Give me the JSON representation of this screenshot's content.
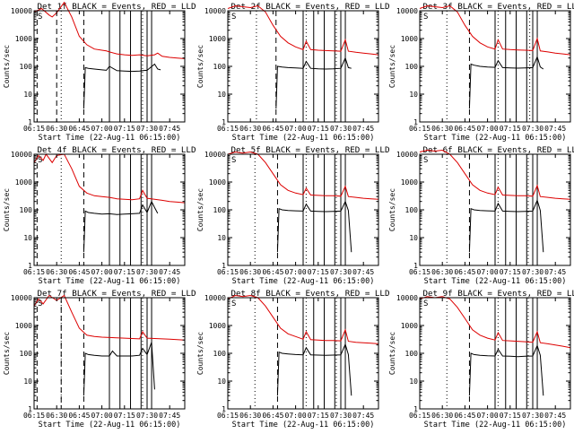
{
  "figure": {
    "xlabel": "Start Time (22-Aug-11 06:15:00)",
    "ylabel": "Counts/sec",
    "x_ticks": [
      "06:15",
      "06:30",
      "06:45",
      "07:00",
      "07:15",
      "07:30",
      "07:45"
    ],
    "y_ticks": [
      "1",
      "10",
      "100",
      "1000",
      "10000"
    ],
    "colors": {
      "events": "#000000",
      "lld": "#dd0000",
      "axes": "#000000",
      "background": "#ffffff"
    }
  },
  "chart_data": [
    {
      "type": "line",
      "title": "Det 1f BLACK = Events, RED = LLD",
      "corner_label": "S",
      "x_range": [
        "06:15",
        "07:55"
      ],
      "ylim": [
        1,
        10000
      ],
      "yscale": "log",
      "series": [
        {
          "name": "RED = LLD",
          "color": "#dd0000",
          "x_min": [
            0,
            5,
            10,
            12,
            15,
            20,
            25,
            30,
            35,
            40,
            45,
            48,
            50,
            55,
            60,
            65,
            70,
            75,
            80,
            82,
            85,
            90,
            95,
            100
          ],
          "values": [
            9000,
            12000,
            7000,
            6000,
            8500,
            20000,
            6000,
            1200,
            600,
            420,
            380,
            360,
            330,
            280,
            260,
            250,
            260,
            240,
            260,
            300,
            230,
            210,
            200,
            190
          ]
        },
        {
          "name": "BLACK = Events",
          "color": "#000000",
          "x_min": [
            33,
            34,
            36,
            40,
            45,
            48,
            50,
            55,
            60,
            65,
            70,
            72,
            75,
            80,
            82,
            84
          ],
          "values": [
            3,
            90,
            85,
            80,
            75,
            72,
            100,
            70,
            68,
            66,
            68,
            70,
            72,
            120,
            80,
            75
          ]
        }
      ],
      "vlines_dashed_min": [
        2,
        15,
        33
      ],
      "vlines_dotted_min": [
        18,
        50,
        72
      ],
      "vlines_solid_min": [
        50,
        57,
        64,
        71,
        75,
        78
      ]
    },
    {
      "type": "line",
      "title": "Det 2f BLACK = Events, RED = LLD",
      "corner_label": "S",
      "x_range": [
        "06:15",
        "07:55"
      ],
      "ylim": [
        1,
        10000
      ],
      "yscale": "log",
      "series": [
        {
          "name": "RED = LLD",
          "color": "#dd0000",
          "x_min": [
            0,
            5,
            10,
            15,
            20,
            25,
            30,
            35,
            40,
            45,
            50,
            52,
            55,
            60,
            65,
            70,
            75,
            78,
            80,
            85,
            90,
            95,
            100
          ],
          "values": [
            12000,
            15000,
            14000,
            13000,
            15000,
            9000,
            3000,
            1200,
            700,
            500,
            400,
            800,
            400,
            380,
            370,
            360,
            350,
            900,
            350,
            320,
            300,
            280,
            260
          ]
        },
        {
          "name": "BLACK = Events",
          "color": "#000000",
          "x_min": [
            32,
            33,
            36,
            40,
            45,
            50,
            52,
            55,
            60,
            65,
            70,
            75,
            78,
            80,
            82
          ],
          "values": [
            3,
            100,
            95,
            90,
            88,
            85,
            150,
            85,
            82,
            80,
            82,
            85,
            200,
            90,
            85
          ]
        }
      ],
      "vlines_dashed_min": [
        32
      ],
      "vlines_dotted_min": [
        19,
        52,
        72
      ],
      "vlines_solid_min": [
        50,
        57,
        64,
        71,
        75,
        78
      ]
    },
    {
      "type": "line",
      "title": "Det 3f BLACK = Events, RED = LLD",
      "corner_label": "S",
      "x_range": [
        "06:15",
        "07:55"
      ],
      "ylim": [
        1,
        10000
      ],
      "yscale": "log",
      "series": [
        {
          "name": "RED = LLD",
          "color": "#dd0000",
          "x_min": [
            0,
            5,
            10,
            15,
            20,
            25,
            30,
            35,
            40,
            45,
            50,
            52,
            55,
            60,
            65,
            70,
            75,
            78,
            80,
            85,
            90,
            95,
            100
          ],
          "values": [
            12000,
            15000,
            14000,
            13000,
            15000,
            9000,
            3000,
            1200,
            700,
            500,
            420,
            900,
            420,
            400,
            390,
            380,
            370,
            1000,
            360,
            330,
            300,
            280,
            260
          ]
        },
        {
          "name": "BLACK = Events",
          "color": "#000000",
          "x_min": [
            33,
            34,
            36,
            40,
            45,
            50,
            52,
            55,
            60,
            65,
            70,
            75,
            78,
            80,
            82
          ],
          "values": [
            3,
            120,
            110,
            100,
            95,
            92,
            160,
            90,
            88,
            86,
            88,
            90,
            220,
            95,
            80
          ]
        }
      ],
      "vlines_dashed_min": [
        33
      ],
      "vlines_dotted_min": [
        18,
        52,
        73
      ],
      "vlines_solid_min": [
        50,
        57,
        64,
        71,
        75,
        78
      ]
    },
    {
      "type": "line",
      "title": "Det 4f BLACK = Events, RED = LLD",
      "corner_label": "S",
      "x_range": [
        "06:15",
        "07:55"
      ],
      "ylim": [
        1,
        10000
      ],
      "yscale": "log",
      "series": [
        {
          "name": "RED = LLD",
          "color": "#dd0000",
          "x_min": [
            0,
            3,
            6,
            8,
            12,
            15,
            20,
            25,
            30,
            35,
            40,
            45,
            50,
            55,
            60,
            65,
            70,
            72,
            75,
            80,
            85,
            90,
            95,
            100
          ],
          "values": [
            5000,
            9000,
            6000,
            10000,
            5000,
            9000,
            10000,
            3000,
            700,
            400,
            320,
            300,
            280,
            250,
            240,
            230,
            250,
            500,
            260,
            240,
            220,
            200,
            190,
            180
          ]
        },
        {
          "name": "BLACK = Events",
          "color": "#000000",
          "x_min": [
            33,
            34,
            36,
            40,
            45,
            50,
            55,
            60,
            65,
            70,
            72,
            75,
            78,
            80,
            82
          ],
          "values": [
            3,
            90,
            80,
            75,
            70,
            72,
            68,
            70,
            72,
            75,
            150,
            80,
            200,
            120,
            75
          ]
        }
      ],
      "vlines_dashed_min": [
        2,
        33
      ],
      "vlines_dotted_min": [
        18,
        50,
        72
      ],
      "vlines_solid_min": [
        50,
        57,
        64,
        71,
        75,
        78
      ]
    },
    {
      "type": "line",
      "title": "Det 5f BLACK = Events, RED = LLD",
      "corner_label": "S",
      "x_range": [
        "06:15",
        "07:55"
      ],
      "ylim": [
        1,
        10000
      ],
      "yscale": "log",
      "series": [
        {
          "name": "RED = LLD",
          "color": "#dd0000",
          "x_min": [
            0,
            5,
            10,
            15,
            20,
            25,
            30,
            35,
            40,
            45,
            50,
            52,
            55,
            60,
            65,
            70,
            75,
            78,
            80,
            85,
            90,
            95,
            100
          ],
          "values": [
            10000,
            12000,
            11000,
            12000,
            10000,
            5000,
            2000,
            800,
            500,
            400,
            350,
            600,
            340,
            330,
            320,
            320,
            310,
            700,
            300,
            280,
            260,
            250,
            240
          ]
        },
        {
          "name": "BLACK = Events",
          "color": "#000000",
          "x_min": [
            33,
            34,
            36,
            40,
            45,
            50,
            52,
            55,
            60,
            65,
            70,
            75,
            78,
            80,
            82
          ],
          "values": [
            3,
            110,
            100,
            95,
            92,
            90,
            160,
            90,
            88,
            86,
            88,
            90,
            200,
            95,
            3
          ]
        }
      ],
      "vlines_dashed_min": [
        33
      ],
      "vlines_dotted_min": [
        18,
        52,
        72
      ],
      "vlines_solid_min": [
        50,
        57,
        64,
        71,
        75,
        78
      ]
    },
    {
      "type": "line",
      "title": "Det 6f BLACK = Events, RED = LLD",
      "corner_label": "S",
      "x_range": [
        "06:15",
        "07:55"
      ],
      "ylim": [
        1,
        10000
      ],
      "yscale": "log",
      "series": [
        {
          "name": "RED = LLD",
          "color": "#dd0000",
          "x_min": [
            0,
            5,
            10,
            15,
            20,
            25,
            30,
            35,
            40,
            45,
            50,
            52,
            55,
            60,
            65,
            70,
            75,
            78,
            80,
            85,
            90,
            95,
            100
          ],
          "values": [
            12000,
            14000,
            13000,
            14000,
            10000,
            5000,
            2000,
            800,
            500,
            400,
            350,
            650,
            340,
            330,
            320,
            320,
            310,
            750,
            300,
            280,
            260,
            250,
            240
          ]
        },
        {
          "name": "BLACK = Events",
          "color": "#000000",
          "x_min": [
            33,
            34,
            36,
            40,
            45,
            50,
            52,
            55,
            60,
            65,
            70,
            75,
            78,
            80,
            82
          ],
          "values": [
            3,
            110,
            100,
            95,
            92,
            90,
            170,
            90,
            88,
            86,
            88,
            90,
            220,
            95,
            3
          ]
        }
      ],
      "vlines_dashed_min": [
        33
      ],
      "vlines_dotted_min": [
        18,
        52,
        72
      ],
      "vlines_solid_min": [
        50,
        57,
        64,
        71,
        75,
        78
      ]
    },
    {
      "type": "line",
      "title": "Det 7f BLACK = Events, RED = LLD",
      "corner_label": "S",
      "x_range": [
        "06:15",
        "07:55"
      ],
      "ylim": [
        1,
        10000
      ],
      "yscale": "log",
      "series": [
        {
          "name": "RED = LLD",
          "color": "#dd0000",
          "x_min": [
            0,
            3,
            6,
            10,
            15,
            20,
            25,
            30,
            35,
            40,
            45,
            50,
            55,
            60,
            65,
            70,
            72,
            75,
            80,
            85,
            90,
            95,
            100
          ],
          "values": [
            5000,
            9000,
            6000,
            12000,
            8000,
            12000,
            3000,
            800,
            450,
            400,
            380,
            370,
            360,
            350,
            340,
            330,
            600,
            350,
            340,
            330,
            320,
            310,
            300
          ]
        },
        {
          "name": "BLACK = Events",
          "color": "#000000",
          "x_min": [
            33,
            34,
            36,
            40,
            45,
            50,
            52,
            55,
            60,
            65,
            70,
            72,
            75,
            78,
            80
          ],
          "values": [
            3,
            100,
            90,
            85,
            80,
            80,
            120,
            80,
            80,
            80,
            85,
            150,
            90,
            250,
            5
          ]
        }
      ],
      "vlines_dashed_min": [
        2,
        18,
        33
      ],
      "vlines_dotted_min": [
        18,
        50,
        72
      ],
      "vlines_solid_min": [
        50,
        57,
        64,
        71,
        75,
        78
      ]
    },
    {
      "type": "line",
      "title": "Det 8f BLACK = Events, RED = LLD",
      "corner_label": "S",
      "x_range": [
        "06:15",
        "07:55"
      ],
      "ylim": [
        1,
        10000
      ],
      "yscale": "log",
      "series": [
        {
          "name": "RED = LLD",
          "color": "#dd0000",
          "x_min": [
            0,
            5,
            10,
            15,
            20,
            25,
            30,
            35,
            40,
            45,
            50,
            52,
            55,
            60,
            65,
            70,
            75,
            78,
            80,
            85,
            90,
            95,
            100
          ],
          "values": [
            9000,
            12000,
            11000,
            12000,
            10000,
            5000,
            2000,
            800,
            500,
            400,
            320,
            600,
            310,
            300,
            290,
            290,
            280,
            700,
            270,
            250,
            240,
            230,
            220
          ]
        },
        {
          "name": "BLACK = Events",
          "color": "#000000",
          "x_min": [
            33,
            34,
            36,
            40,
            45,
            50,
            52,
            55,
            60,
            65,
            70,
            75,
            78,
            80,
            82
          ],
          "values": [
            3,
            110,
            100,
            95,
            90,
            88,
            160,
            88,
            86,
            85,
            86,
            88,
            210,
            90,
            3
          ]
        }
      ],
      "vlines_dashed_min": [
        33
      ],
      "vlines_dotted_min": [
        18,
        52,
        72
      ],
      "vlines_solid_min": [
        50,
        57,
        64,
        71,
        75,
        78
      ]
    },
    {
      "type": "line",
      "title": "Det 9f BLACK = Events, RED = LLD",
      "corner_label": "S",
      "x_range": [
        "06:15",
        "07:55"
      ],
      "ylim": [
        1,
        10000
      ],
      "yscale": "log",
      "series": [
        {
          "name": "RED = LLD",
          "color": "#dd0000",
          "x_min": [
            0,
            5,
            10,
            15,
            20,
            25,
            30,
            35,
            40,
            45,
            50,
            52,
            55,
            60,
            65,
            70,
            75,
            78,
            80,
            85,
            90,
            95,
            100
          ],
          "values": [
            9000,
            11000,
            10000,
            11000,
            9000,
            4500,
            1800,
            700,
            450,
            350,
            300,
            550,
            290,
            280,
            270,
            260,
            250,
            600,
            240,
            220,
            200,
            180,
            160
          ]
        },
        {
          "name": "BLACK = Events",
          "color": "#000000",
          "x_min": [
            33,
            34,
            36,
            40,
            45,
            50,
            52,
            55,
            60,
            65,
            70,
            75,
            78,
            80,
            82
          ],
          "values": [
            3,
            100,
            90,
            85,
            82,
            80,
            140,
            80,
            78,
            76,
            78,
            80,
            190,
            85,
            3
          ]
        }
      ],
      "vlines_dashed_min": [
        33
      ],
      "vlines_dotted_min": [
        18,
        52,
        72
      ],
      "vlines_solid_min": [
        50,
        57,
        64,
        71,
        75,
        78
      ]
    }
  ]
}
